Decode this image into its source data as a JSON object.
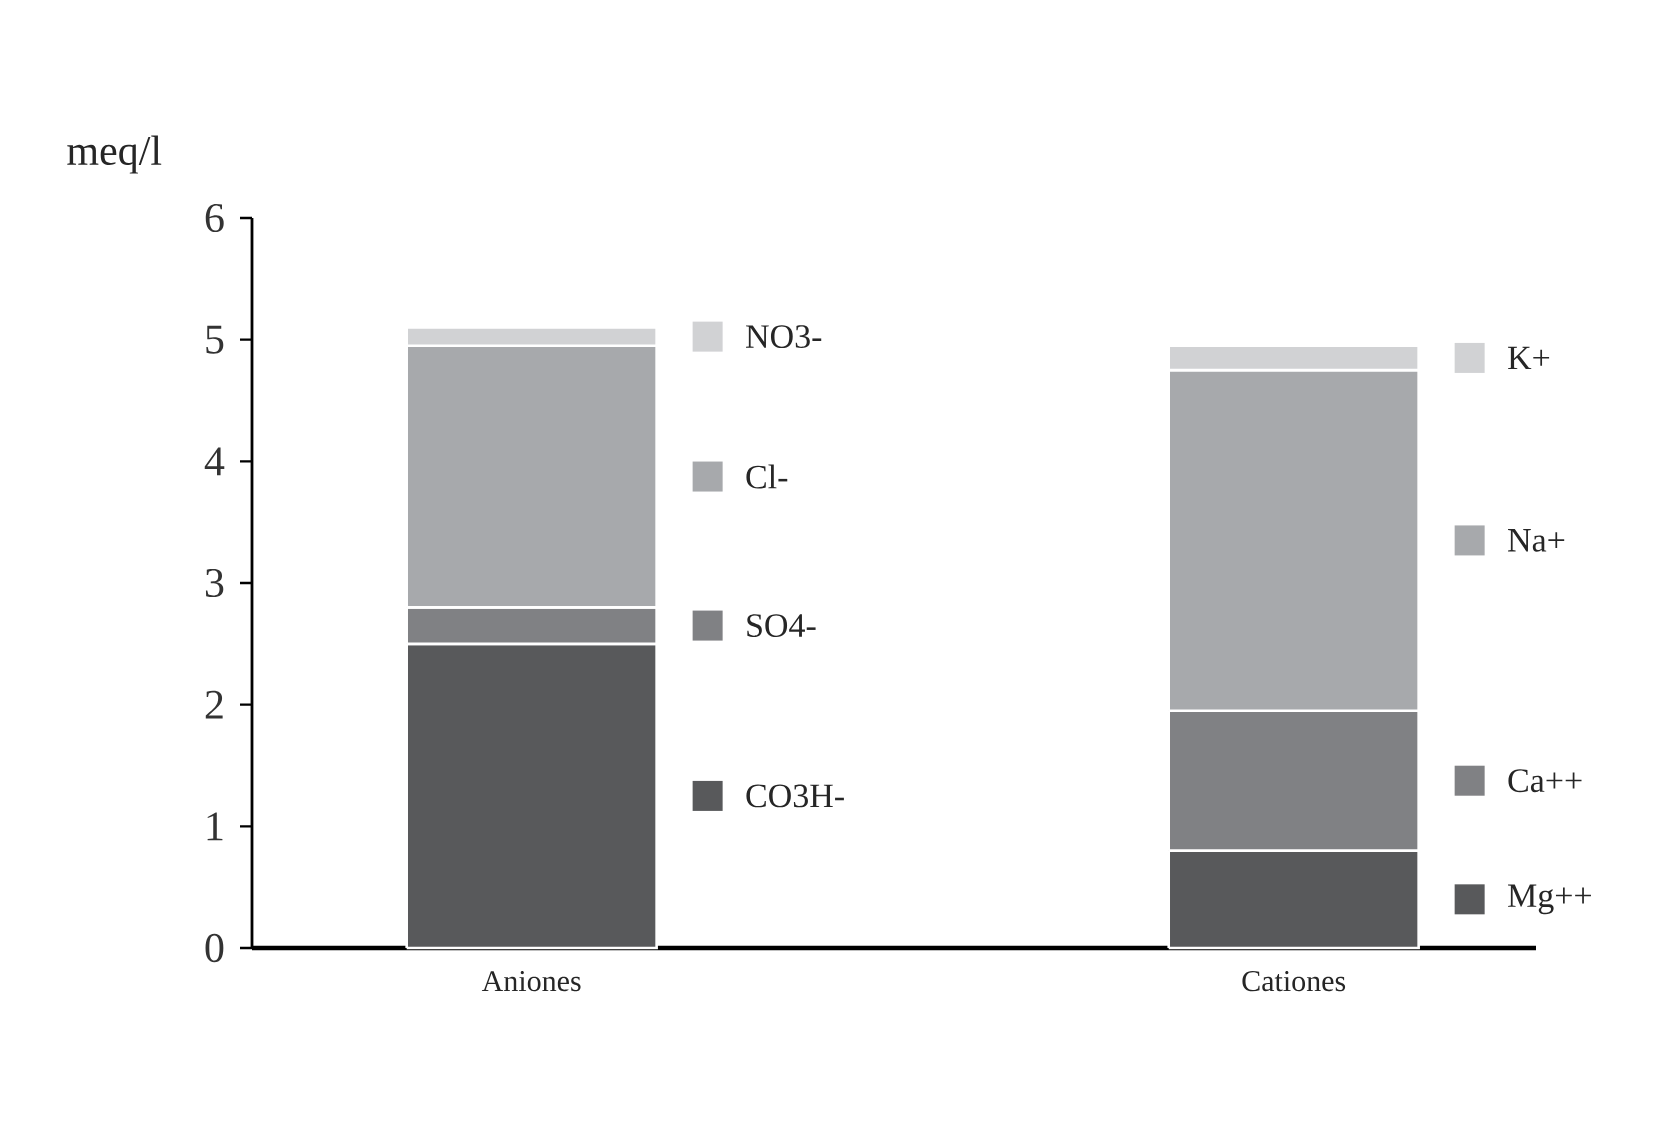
{
  "chart_data": {
    "type": "bar",
    "stacked": true,
    "ylabel": "meq/l",
    "categories": [
      "Aniones",
      "Cationes"
    ],
    "series": [
      {
        "name": "CO3H-",
        "color": "#58595b",
        "values": [
          2.5,
          null
        ]
      },
      {
        "name": "SO4-",
        "color": "#808184",
        "values": [
          0.3,
          null
        ]
      },
      {
        "name": "Cl-",
        "color": "#a7a9ac",
        "values": [
          2.15,
          null
        ]
      },
      {
        "name": "NO3-",
        "color": "#d1d2d4",
        "values": [
          0.15,
          null
        ]
      },
      {
        "name": "Mg++",
        "color": "#58595b",
        "values": [
          null,
          0.8
        ]
      },
      {
        "name": "Ca++",
        "color": "#808184",
        "values": [
          null,
          1.15
        ]
      },
      {
        "name": "Na+",
        "color": "#a7a9ac",
        "values": [
          null,
          2.8
        ]
      },
      {
        "name": "K+",
        "color": "#d1d2d4",
        "values": [
          null,
          0.2
        ]
      }
    ],
    "ylim": [
      0,
      6
    ],
    "yticks": [
      0,
      1,
      2,
      3,
      4,
      5,
      6
    ],
    "legend": "right"
  }
}
